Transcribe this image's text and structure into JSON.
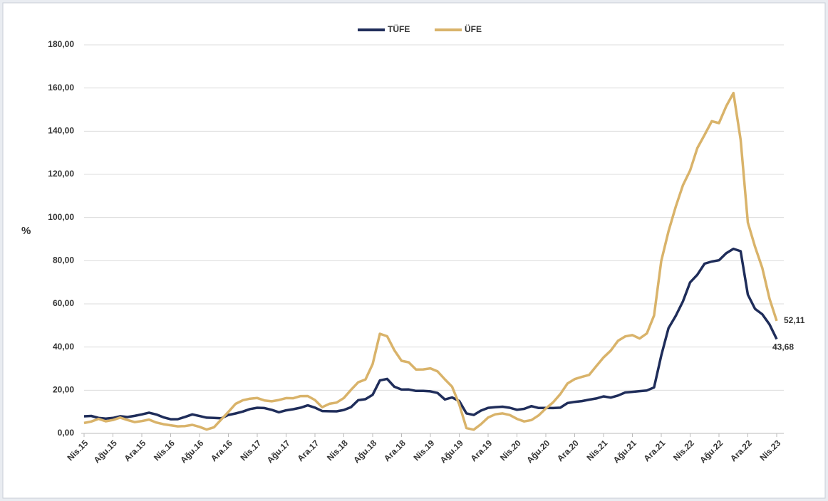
{
  "chart_data": {
    "type": "line",
    "y_label": "%",
    "categories": [
      "Nis.15",
      null,
      null,
      null,
      "Ağu.15",
      null,
      null,
      null,
      "Ara.15",
      null,
      null,
      null,
      "Nis.16",
      null,
      null,
      null,
      "Ağu.16",
      null,
      null,
      null,
      "Ara.16",
      null,
      null,
      null,
      "Nis.17",
      null,
      null,
      null,
      "Ağu.17",
      null,
      null,
      null,
      "Ara.17",
      null,
      null,
      null,
      "Nis.18",
      null,
      null,
      null,
      "Ağu.18",
      null,
      null,
      null,
      "Ara.18",
      null,
      null,
      null,
      "Nis.19",
      null,
      null,
      null,
      "Ağu.19",
      null,
      null,
      null,
      "Ara.19",
      null,
      null,
      null,
      "Nis.20",
      null,
      null,
      null,
      "Ağu.20",
      null,
      null,
      null,
      "Ara.20",
      null,
      null,
      null,
      "Nis.21",
      null,
      null,
      null,
      "Ağu.21",
      null,
      null,
      null,
      "Ara.21",
      null,
      null,
      null,
      "Nis.22",
      null,
      null,
      null,
      "Ağu.22",
      null,
      null,
      null,
      "Ara.22",
      null,
      null,
      null,
      "Nis.23"
    ],
    "series": [
      {
        "name": "TÜFE",
        "color": "#1f2d5a",
        "values": [
          7.91,
          8.09,
          7.2,
          6.81,
          7.14,
          7.95,
          7.58,
          8.1,
          8.81,
          9.58,
          8.78,
          7.46,
          6.57,
          6.58,
          7.64,
          8.79,
          8.05,
          7.28,
          7.16,
          7,
          8.53,
          9.22,
          10.13,
          11.29,
          11.87,
          11.72,
          10.9,
          9.79,
          10.68,
          11.2,
          11.9,
          12.98,
          11.92,
          10.35,
          10.26,
          10.23,
          10.85,
          12.15,
          15.39,
          15.85,
          17.9,
          24.52,
          25.24,
          21.62,
          20.3,
          20.35,
          19.67,
          19.71,
          19.5,
          18.71,
          15.72,
          16.65,
          15.01,
          9.26,
          8.55,
          10.56,
          11.84,
          12.15,
          12.37,
          11.86,
          10.94,
          11.39,
          12.62,
          11.76,
          11.77,
          11.75,
          11.89,
          14.03,
          14.6,
          14.97,
          15.61,
          16.19,
          17.14,
          16.59,
          17.53,
          18.95,
          19.25,
          19.58,
          19.89,
          21.31,
          36.08,
          48.69,
          54.44,
          61.14,
          69.97,
          73.5,
          78.62,
          79.6,
          80.21,
          83.45,
          85.51,
          84.39,
          64.27,
          57.68,
          55.18,
          50.51,
          43.68
        ],
        "value_labels": [
          null,
          null,
          null,
          null,
          null,
          null,
          null,
          null,
          null,
          null,
          null,
          null,
          null,
          null,
          null,
          null,
          null,
          null,
          null,
          null,
          null,
          null,
          null,
          null,
          null,
          null,
          null,
          null,
          null,
          null,
          null,
          null,
          null,
          null,
          null,
          null,
          null,
          null,
          null,
          null,
          null,
          null,
          null,
          null,
          null,
          null,
          null,
          null,
          null,
          null,
          null,
          null,
          null,
          null,
          null,
          null,
          null,
          null,
          null,
          null,
          null,
          null,
          null,
          null,
          null,
          null,
          null,
          null,
          null,
          null,
          null,
          null,
          null,
          null,
          null,
          null,
          null,
          null,
          null,
          null,
          null,
          null,
          null,
          null,
          null,
          null,
          null,
          null,
          null,
          null,
          null,
          null,
          null,
          null,
          null,
          null,
          "43,68"
        ]
      },
      {
        "name": "ÜFE",
        "color": "#d9b36a",
        "values": [
          4.8,
          5.52,
          6.73,
          5.62,
          6.21,
          7.32,
          6.21,
          5.25,
          5.71,
          6.41,
          5.06,
          4.25,
          3.77,
          3.25,
          3.41,
          3.96,
          3.03,
          1.78,
          2.84,
          6.41,
          9.94,
          13.69,
          15.36,
          16.09,
          16.37,
          15.26,
          14.87,
          15.45,
          16.34,
          16.28,
          17.28,
          17.3,
          15.47,
          12.14,
          13.71,
          14.28,
          16.37,
          20.16,
          23.71,
          25,
          32.13,
          46.15,
          45.01,
          38.54,
          33.64,
          32.93,
          29.59,
          29.64,
          30.12,
          28.71,
          25.04,
          21.66,
          13.45,
          2.45,
          1.7,
          4.26,
          7.36,
          8.84,
          9.26,
          8.5,
          6.71,
          5.53,
          6.17,
          8.33,
          11.53,
          14.33,
          18.2,
          23.11,
          25.15,
          26.16,
          27.09,
          31.2,
          35.17,
          38.33,
          42.89,
          44.92,
          45.52,
          43.96,
          46.31,
          54.62,
          79.89,
          93.53,
          105.01,
          114.97,
          121.82,
          132.16,
          138.31,
          144.61,
          143.75,
          151.5,
          157.69,
          136.02,
          97.72,
          86.46,
          76.61,
          62.43,
          52.11
        ],
        "value_labels": [
          null,
          null,
          null,
          null,
          null,
          null,
          null,
          null,
          null,
          null,
          null,
          null,
          null,
          null,
          null,
          null,
          null,
          null,
          null,
          null,
          null,
          null,
          null,
          null,
          null,
          null,
          null,
          null,
          null,
          null,
          null,
          null,
          null,
          null,
          null,
          null,
          null,
          null,
          null,
          null,
          null,
          null,
          null,
          null,
          null,
          null,
          null,
          null,
          null,
          null,
          null,
          null,
          null,
          null,
          null,
          null,
          null,
          null,
          null,
          null,
          null,
          null,
          null,
          null,
          null,
          null,
          null,
          null,
          null,
          null,
          null,
          null,
          null,
          null,
          null,
          null,
          null,
          null,
          null,
          null,
          null,
          null,
          null,
          null,
          null,
          null,
          null,
          null,
          null,
          null,
          null,
          null,
          null,
          null,
          null,
          null,
          "52,11"
        ]
      }
    ],
    "ylim": [
      0,
      180
    ],
    "yticks": [
      {
        "value": 0,
        "label": "0,00"
      },
      {
        "value": 20,
        "label": "20,00"
      },
      {
        "value": 40,
        "label": "40,00"
      },
      {
        "value": 60,
        "label": "60,00"
      },
      {
        "value": 80,
        "label": "80,00"
      },
      {
        "value": 100,
        "label": "100,00"
      },
      {
        "value": 120,
        "label": "120,00"
      },
      {
        "value": 140,
        "label": "140,00"
      },
      {
        "value": 160,
        "label": "160,00"
      },
      {
        "value": 180,
        "label": "180,00"
      }
    ],
    "grid": true,
    "legend": "top"
  }
}
